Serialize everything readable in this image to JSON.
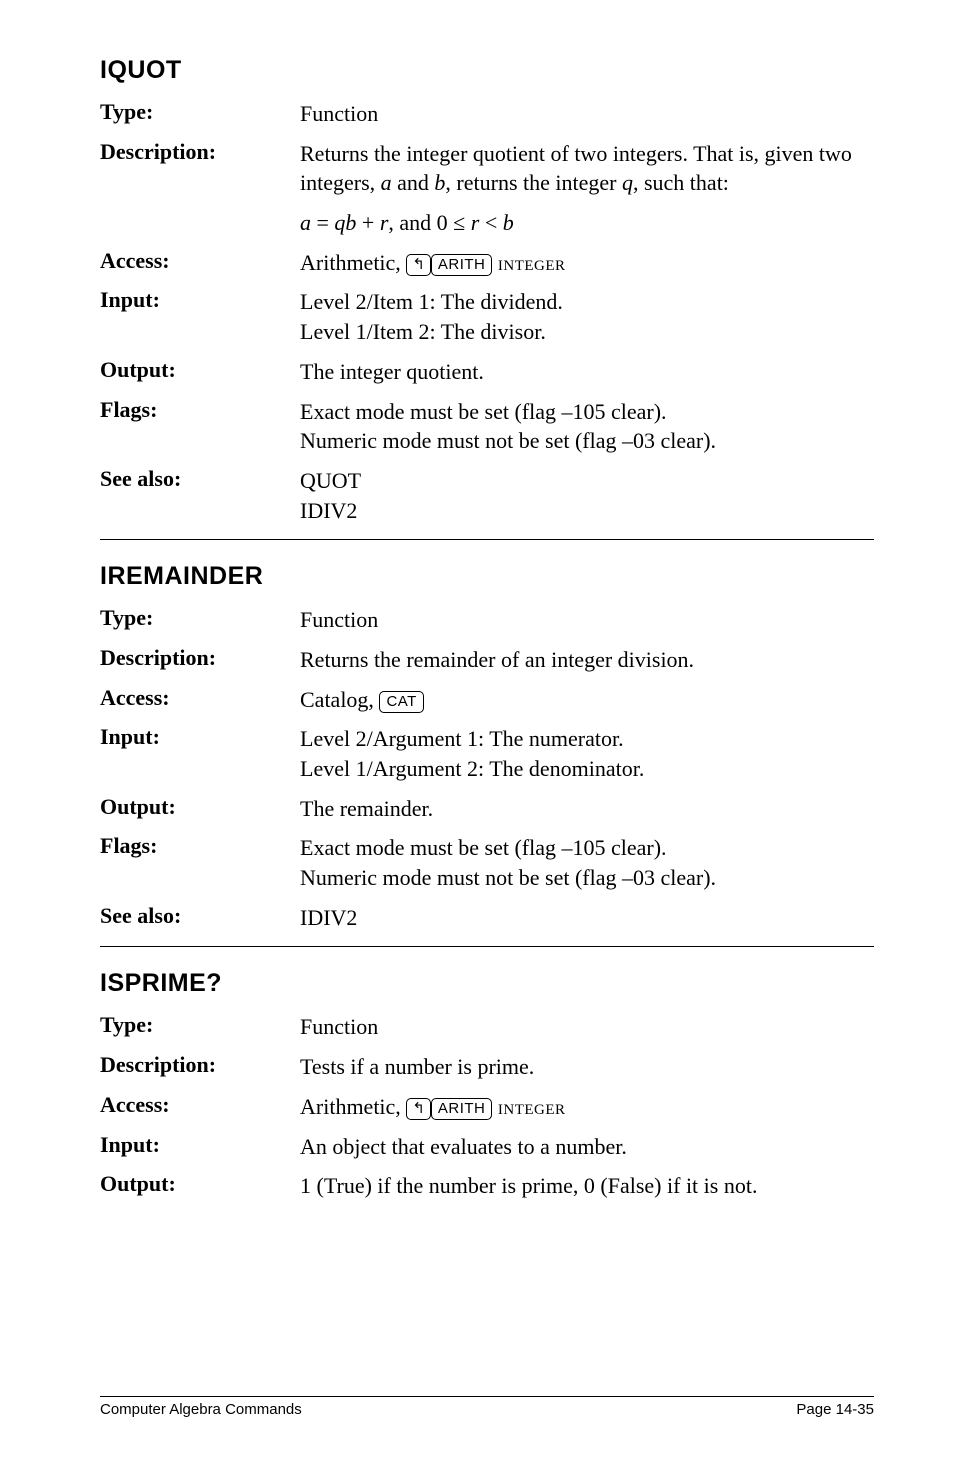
{
  "sections": [
    {
      "heading": "IQUOT",
      "entries": [
        {
          "label": "Type:",
          "value_html": "Function"
        },
        {
          "label": "Description:",
          "value_html": "Returns the integer quotient of two integers. That is, given two integers, <span class='italic'>a</span> and <span class='italic'>b</span>, returns the integer <span class='italic'>q</span>, such that:"
        },
        {
          "label": "",
          "value_html": "<span class='italic'>a</span> = <span class='italic'>qb</span> + <span class='italic'>r</span>, and 0 ≤ <span class='italic'>r</span> &lt; <span class='italic'>b</span>"
        },
        {
          "label": "Access:",
          "value_html": "Arithmetic, <span class='keycap-shift'>↰</span><span class='keycap'>ARITH</span> <span class='smallcaps'>integer</span>"
        },
        {
          "label": "Input:",
          "value_html": "Level 2/Item 1: The dividend.<br>Level 1/Item 2: The divisor."
        },
        {
          "label": "Output:",
          "value_html": "The integer quotient."
        },
        {
          "label": "Flags:",
          "value_html": "Exact mode must be set (flag –105 clear).<br>Numeric mode must not be set (flag –03 clear)."
        },
        {
          "label": "See also:",
          "value_html": "QUOT<br>IDIV2"
        }
      ]
    },
    {
      "heading": "IREMAINDER",
      "entries": [
        {
          "label": "Type:",
          "value_html": "Function"
        },
        {
          "label": "Description:",
          "value_html": "Returns the remainder of an integer division."
        },
        {
          "label": "Access:",
          "value_html": "Catalog, <span class='keycap'>CAT</span>"
        },
        {
          "label": "Input:",
          "value_html": "Level 2/Argument 1: The numerator.<br>Level 1/Argument 2: The denominator."
        },
        {
          "label": "Output:",
          "value_html": "The remainder."
        },
        {
          "label": "Flags:",
          "value_html": "Exact mode must be set (flag –105 clear).<br>Numeric mode must not be set (flag –03 clear)."
        },
        {
          "label": "See also:",
          "value_html": "IDIV2"
        }
      ]
    },
    {
      "heading": "ISPRIME?",
      "entries": [
        {
          "label": "Type:",
          "value_html": "Function"
        },
        {
          "label": "Description:",
          "value_html": "Tests if a number is prime."
        },
        {
          "label": "Access:",
          "value_html": "Arithmetic, <span class='keycap-shift'>↰</span><span class='keycap'>ARITH</span> <span class='smallcaps'>integer</span>"
        },
        {
          "label": "Input:",
          "value_html": "An object that evaluates to a number."
        },
        {
          "label": "Output:",
          "value_html": "1 (True) if the number is prime, 0 (False) if it is not."
        }
      ]
    }
  ],
  "footer": {
    "left": "Computer Algebra Commands",
    "right": "Page 14-35"
  }
}
